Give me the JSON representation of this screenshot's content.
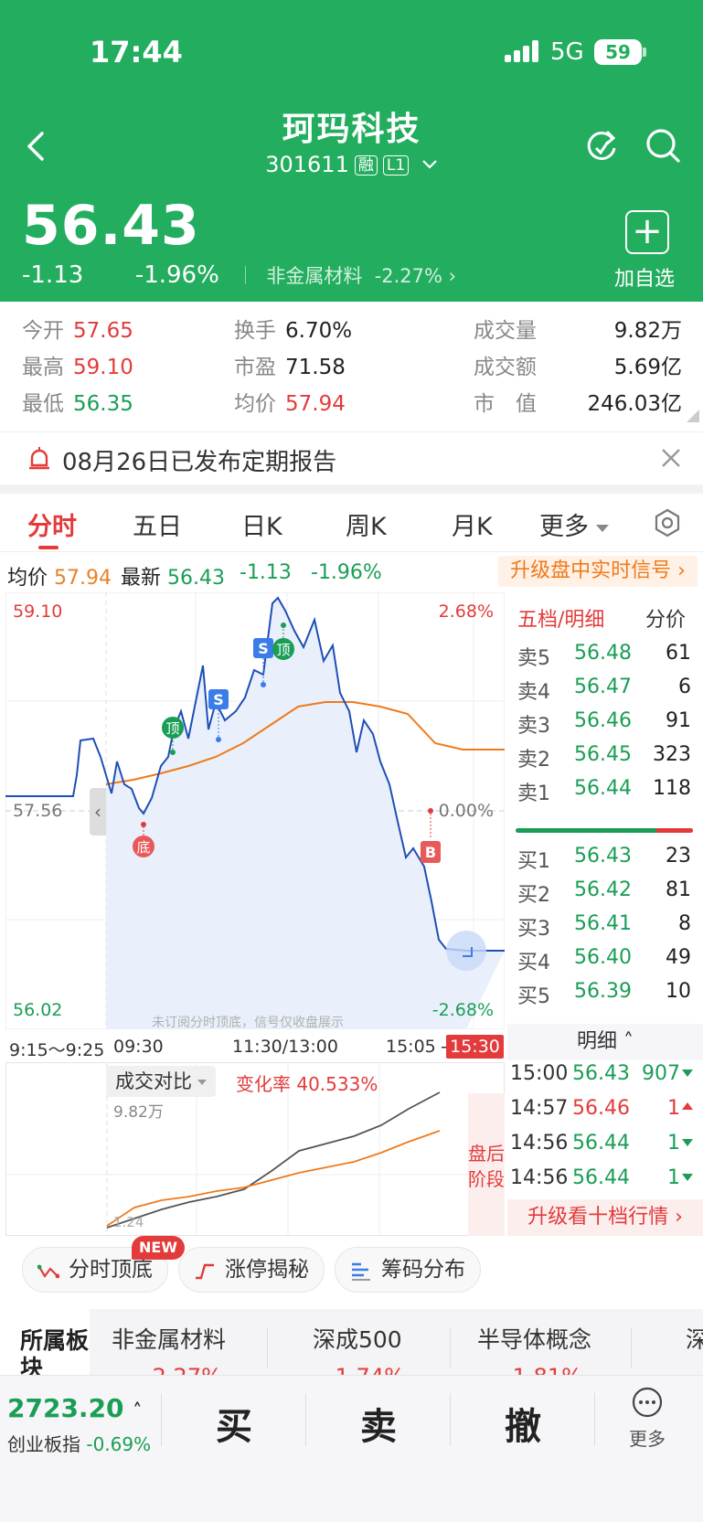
{
  "status": {
    "time": "17:44",
    "network": "5G",
    "battery": "59"
  },
  "header": {
    "name": "珂玛科技",
    "code": "301611",
    "tag_margin": "融",
    "tag_level": "L1",
    "price": "56.43",
    "change": "-1.13",
    "change_pct": "-1.96%",
    "sector": "非金属材料",
    "sector_pct": "-2.27%",
    "add_label": "加自选"
  },
  "stats": {
    "open_k": "今开",
    "open_v": "57.65",
    "high_k": "最高",
    "high_v": "59.10",
    "low_k": "最低",
    "low_v": "56.35",
    "turnover_k": "换手",
    "turnover_v": "6.70%",
    "pe_k": "市盈",
    "pe_v": "71.58",
    "avg_k": "均价",
    "avg_v": "57.94",
    "volume_k": "成交量",
    "volume_v": "9.82万",
    "amount_k": "成交额",
    "amount_v": "5.69亿",
    "mcap_k": "市　值",
    "mcap_v": "246.03亿"
  },
  "notice": {
    "text": "08月26日已发布定期报告"
  },
  "tabs": {
    "t1": "分时",
    "t2": "五日",
    "t3": "日K",
    "t4": "周K",
    "t5": "月K",
    "t6": "更多"
  },
  "quote": {
    "avg_k": "均价",
    "avg_v": "57.94",
    "last_k": "最新",
    "last_v": "56.43",
    "chg": "-1.13",
    "pct": "-1.96%",
    "upgrade": "升级盘中实时信号"
  },
  "chart": {
    "y_top": "59.10",
    "y_mid": "57.56",
    "y_bot": "56.02",
    "pct_top": "2.68%",
    "pct_mid": "0.00%",
    "pct_bot": "-2.68%",
    "watermark": "未订阅分时顶底，信号仅收盘展示",
    "marker_ding": "顶",
    "marker_di": "底",
    "marker_s": "S",
    "marker_b": "B",
    "times": {
      "t1": "9:15～9:25",
      "t2": "09:30",
      "t3": "11:30/13:00",
      "t4": "15:05",
      "t5": "-",
      "close": "15:30"
    }
  },
  "volume": {
    "tab": "成交对比",
    "rate_label": "变化率",
    "rate_value": "40.533%",
    "total": "9.82万",
    "min": "1.24",
    "after_hours": "盘后阶段"
  },
  "book": {
    "title": "五档/明细",
    "split": "分价",
    "sell": [
      {
        "k": "卖5",
        "p": "56.48",
        "v": "61"
      },
      {
        "k": "卖4",
        "p": "56.47",
        "v": "6"
      },
      {
        "k": "卖3",
        "p": "56.46",
        "v": "91"
      },
      {
        "k": "卖2",
        "p": "56.45",
        "v": "323"
      },
      {
        "k": "卖1",
        "p": "56.44",
        "v": "118"
      }
    ],
    "buy": [
      {
        "k": "买1",
        "p": "56.43",
        "v": "23"
      },
      {
        "k": "买2",
        "p": "56.42",
        "v": "81"
      },
      {
        "k": "买3",
        "p": "56.41",
        "v": "8"
      },
      {
        "k": "买4",
        "p": "56.40",
        "v": "49"
      },
      {
        "k": "买5",
        "p": "56.39",
        "v": "10"
      }
    ],
    "detail": "明细",
    "trades": [
      {
        "t": "15:00",
        "p": "56.43",
        "n": "907",
        "dir": "dn"
      },
      {
        "t": "14:57",
        "p": "56.46",
        "n": "1",
        "dir": "up"
      },
      {
        "t": "14:56",
        "p": "56.44",
        "n": "1",
        "dir": "dn"
      },
      {
        "t": "14:56",
        "p": "56.44",
        "n": "1",
        "dir": "dn"
      }
    ],
    "upgrade": "升级看十档行情"
  },
  "chips": {
    "c1": "分时顶底",
    "c2": "涨停揭秘",
    "c3": "筹码分布",
    "new": "NEW"
  },
  "sectors": {
    "head": "所属板块",
    "s1": "非金属材料",
    "s1p": "-2.27%",
    "s2": "深成500",
    "s2p": "-1.74%",
    "s3": "半导体概念",
    "s3p": "-1.81%",
    "s4": "深"
  },
  "bottom": {
    "idx_value": "2723.20",
    "idx_name": "创业板指",
    "idx_pct": "-0.69%",
    "buy": "买",
    "sell": "卖",
    "cancel": "撤",
    "more": "更多"
  },
  "colors": {
    "up": "#e33b3b",
    "down": "#1a9e55",
    "brand": "#23ad5f",
    "avg_line": "#f07a1a",
    "price_line": "#1f4fb5"
  }
}
